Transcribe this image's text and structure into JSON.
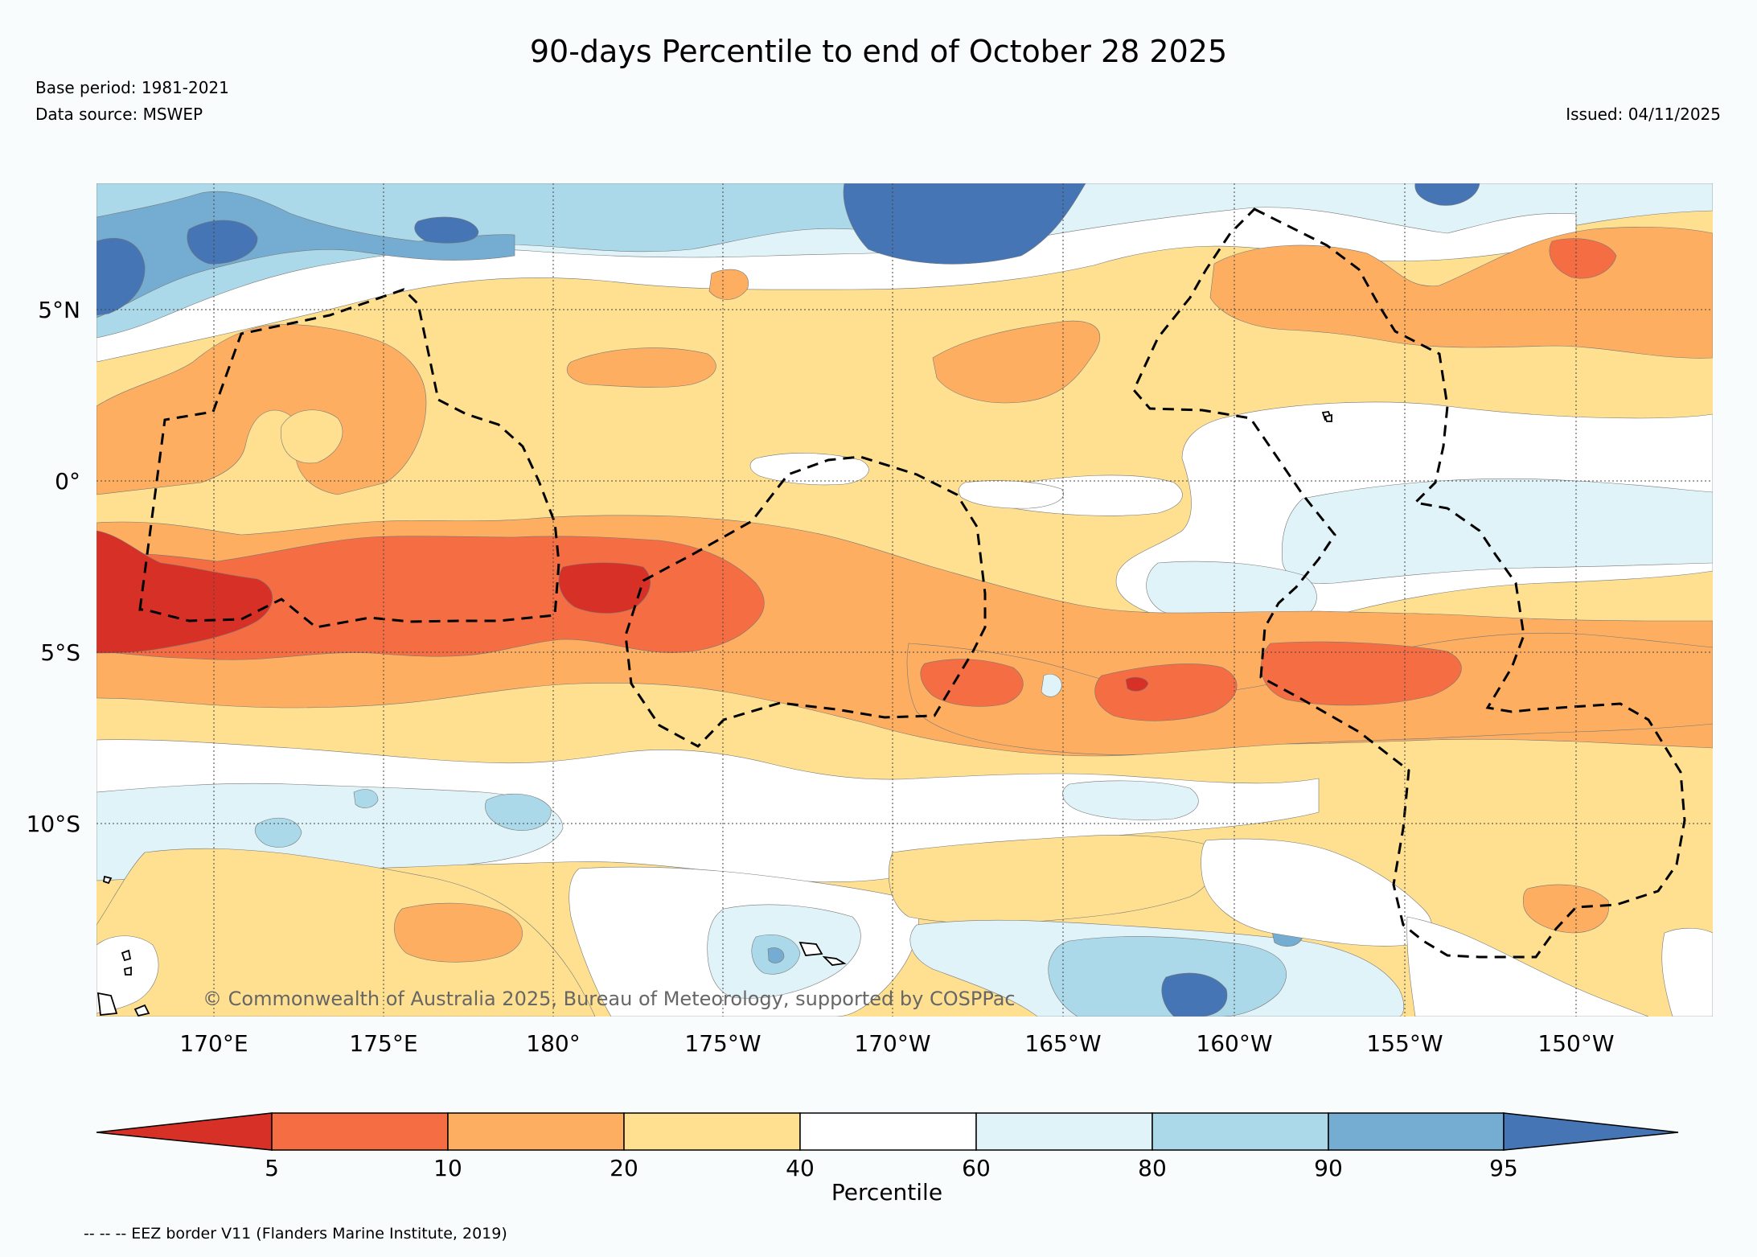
{
  "header": {
    "title": "90-days Percentile to end of October 28 2025",
    "base_period": "Base period: 1981-2021",
    "data_source": "Data source: MSWEP",
    "issued": "Issued: 04/11/2025"
  },
  "map": {
    "lon_range": [
      166.5,
      213.5
    ],
    "lat_range": [
      -15.5,
      8.5
    ],
    "lat_ticks": [
      {
        "value": 5,
        "label": "5°N"
      },
      {
        "value": 0,
        "label": "0°"
      },
      {
        "value": -5,
        "label": "5°S"
      },
      {
        "value": -10,
        "label": "10°S"
      }
    ],
    "lon_ticks": [
      {
        "value": 170,
        "label": "170°E"
      },
      {
        "value": 175,
        "label": "175°E"
      },
      {
        "value": 180,
        "label": "180°"
      },
      {
        "value": 185,
        "label": "175°W"
      },
      {
        "value": 190,
        "label": "170°W"
      },
      {
        "value": 195,
        "label": "165°W"
      },
      {
        "value": 200,
        "label": "160°W"
      },
      {
        "value": 205,
        "label": "155°W"
      },
      {
        "value": 210,
        "label": "150°W"
      }
    ],
    "copyright": "© Commonwealth of Australia 2025, Bureau of Meteorology, supported by COSPPac"
  },
  "colorbar": {
    "label": "Percentile",
    "bins": [
      {
        "from": 0,
        "to": 5,
        "color": "#d73027"
      },
      {
        "from": 5,
        "to": 10,
        "color": "#f46d43"
      },
      {
        "from": 10,
        "to": 20,
        "color": "#fdae61"
      },
      {
        "from": 20,
        "to": 40,
        "color": "#fee090"
      },
      {
        "from": 40,
        "to": 60,
        "color": "#ffffff"
      },
      {
        "from": 60,
        "to": 80,
        "color": "#e0f3f8"
      },
      {
        "from": 80,
        "to": 90,
        "color": "#abd9e9"
      },
      {
        "from": 90,
        "to": 95,
        "color": "#74add1"
      },
      {
        "from": 95,
        "to": 100,
        "color": "#4575b4"
      }
    ],
    "ticks": [
      "5",
      "10",
      "20",
      "40",
      "60",
      "80",
      "90",
      "95"
    ]
  },
  "footnote": "-- -- -- EEZ border V11 (Flanders Marine Institute, 2019)"
}
